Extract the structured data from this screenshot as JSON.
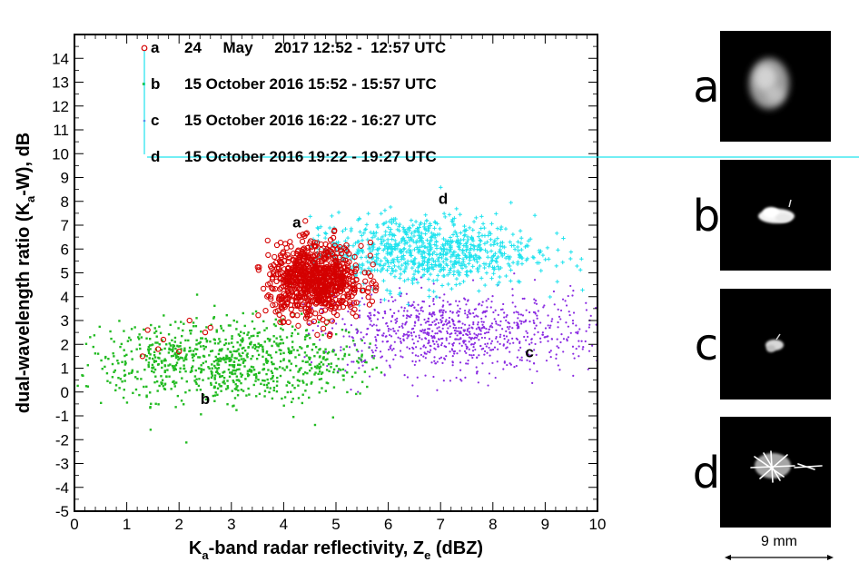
{
  "chart_data": {
    "type": "scatter",
    "xlabel_parts": [
      "K",
      "a",
      "-band radar reflectivity, Z",
      "e",
      " (dBZ)"
    ],
    "ylabel_parts": [
      "dual-wavelength ratio (K",
      "a",
      "-W), dB"
    ],
    "xlim": [
      0,
      10
    ],
    "ylim": [
      -5,
      15
    ],
    "xticks": [
      0,
      1,
      2,
      3,
      4,
      5,
      6,
      7,
      8,
      9,
      10
    ],
    "yticks": [
      -5,
      -4,
      -3,
      -2,
      -1,
      0,
      1,
      2,
      3,
      4,
      5,
      6,
      7,
      8,
      9,
      10,
      11,
      12,
      13,
      14
    ],
    "legend_position": "top",
    "series": [
      {
        "key": "a",
        "name": "24     May     2017 12:52 -  12:57 UTC",
        "marker": "circle",
        "color": "#d40000",
        "cloud": {
          "center": [
            4.6,
            4.7
          ],
          "spread": [
            0.45,
            0.75
          ],
          "count": 800,
          "xrange": [
            3.5,
            5.8
          ]
        },
        "trail": [
          [
            1.3,
            1.5
          ],
          [
            1.6,
            1.8
          ],
          [
            1.7,
            2.2
          ],
          [
            2.2,
            3.0
          ],
          [
            2.5,
            2.5
          ],
          [
            2.6,
            2.7
          ],
          [
            1.4,
            2.6
          ],
          [
            2.0,
            1.7
          ]
        ]
      },
      {
        "key": "b",
        "name": "15 October 2016 15:52 - 15:57 UTC",
        "marker": "square",
        "color": "#22bb22",
        "cloud": {
          "center": [
            3.0,
            1.3
          ],
          "spread": [
            1.5,
            0.85
          ],
          "count": 900,
          "xrange": [
            0.05,
            5.9
          ]
        }
      },
      {
        "key": "c",
        "name": "15 October 2016 16:22 - 16:27 UTC",
        "marker": "dot",
        "color": "#8a2be2",
        "cloud": {
          "center": [
            7.2,
            2.5
          ],
          "spread": [
            1.4,
            0.85
          ],
          "count": 900,
          "xrange": [
            4.3,
            10.0
          ]
        }
      },
      {
        "key": "d",
        "name": "15 October 2016 19:22 - 19:27 UTC",
        "marker": "plus",
        "color": "#1fe3ee",
        "cloud": {
          "center": [
            6.6,
            5.9
          ],
          "spread": [
            1.1,
            0.75
          ],
          "count": 850,
          "xrange": [
            4.5,
            9.8
          ]
        }
      }
    ],
    "annotations": [
      {
        "text": "a",
        "x": 4.25,
        "y": 6.9
      },
      {
        "text": "b",
        "x": 2.5,
        "y": -0.5
      },
      {
        "text": "c",
        "x": 8.7,
        "y": 1.45
      },
      {
        "text": "d",
        "x": 7.05,
        "y": 7.9
      }
    ]
  },
  "panels": [
    {
      "letter": "a",
      "shape": "diffuse"
    },
    {
      "letter": "b",
      "shape": "flat"
    },
    {
      "letter": "c",
      "shape": "small"
    },
    {
      "letter": "d",
      "shape": "dendrite"
    }
  ],
  "scale_bar": {
    "label": "9 mm"
  }
}
